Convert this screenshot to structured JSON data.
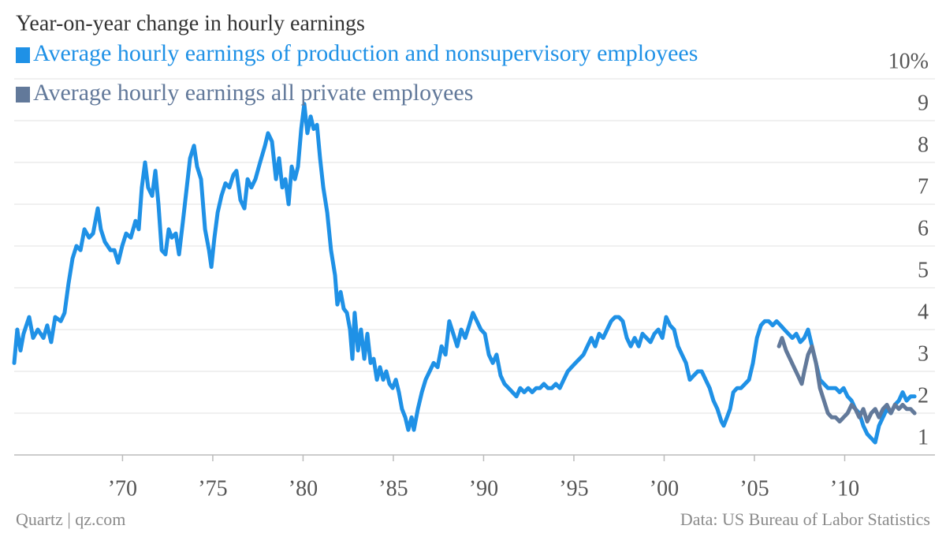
{
  "chart_data": {
    "type": "line",
    "title": "Year-on-year change in hourly earnings",
    "source_left": "Quartz | qz.com",
    "source_right": "Data: US Bureau of Labor Statistics",
    "xlim": [
      1964,
      2015
    ],
    "ylim": [
      1,
      10
    ],
    "xticks": [
      {
        "value": 1970,
        "label": "’70"
      },
      {
        "value": 1975,
        "label": "’75"
      },
      {
        "value": 1980,
        "label": "’80"
      },
      {
        "value": 1985,
        "label": "’85"
      },
      {
        "value": 1990,
        "label": "’90"
      },
      {
        "value": 1995,
        "label": "’95"
      },
      {
        "value": 2000,
        "label": "’00"
      },
      {
        "value": 2005,
        "label": "’05"
      },
      {
        "value": 2010,
        "label": "’10"
      }
    ],
    "yticks": [
      1,
      2,
      3,
      4,
      5,
      6,
      7,
      8,
      9,
      {
        "value": 10,
        "label": "10%"
      }
    ],
    "grid": true,
    "series": [
      {
        "name": "Average hourly earnings of production and nonsupervisory employees",
        "color": "#1f91e6",
        "x": [
          1964.0,
          1964.17,
          1964.35,
          1964.52,
          1964.83,
          1965.05,
          1965.31,
          1965.62,
          1965.83,
          1966.05,
          1966.27,
          1966.58,
          1966.79,
          1967.01,
          1967.23,
          1967.45,
          1967.67,
          1967.89,
          1968.15,
          1968.37,
          1968.63,
          1968.8,
          1969.02,
          1969.33,
          1969.55,
          1969.76,
          1969.98,
          1970.2,
          1970.46,
          1970.72,
          1970.9,
          1971.07,
          1971.25,
          1971.42,
          1971.64,
          1971.82,
          1971.99,
          1972.17,
          1972.38,
          1972.56,
          1972.73,
          1972.95,
          1973.13,
          1973.35,
          1973.56,
          1973.74,
          1973.96,
          1974.13,
          1974.35,
          1974.57,
          1974.79,
          1974.92,
          1975.09,
          1975.27,
          1975.48,
          1975.7,
          1975.92,
          1976.14,
          1976.31,
          1976.53,
          1976.75,
          1976.93,
          1977.14,
          1977.36,
          1977.62,
          1977.89,
          1978.06,
          1978.28,
          1978.5,
          1978.67,
          1978.85,
          1979.02,
          1979.2,
          1979.37,
          1979.55,
          1979.72,
          1979.9,
          1980.07,
          1980.24,
          1980.42,
          1980.59,
          1980.77,
          1980.94,
          1981.12,
          1981.34,
          1981.55,
          1981.77,
          1981.9,
          1982.08,
          1982.25,
          1982.43,
          1982.6,
          1982.73,
          1982.86,
          1983.04,
          1983.21,
          1983.39,
          1983.56,
          1983.74,
          1983.91,
          1984.09,
          1984.26,
          1984.44,
          1984.61,
          1984.79,
          1984.96,
          1985.14,
          1985.31,
          1985.48,
          1985.66,
          1985.83,
          1986.01,
          1986.14,
          1986.36,
          1986.58,
          1986.79,
          1987.01,
          1987.23,
          1987.45,
          1987.67,
          1987.89,
          1988.1,
          1988.32,
          1988.54,
          1988.76,
          1988.98,
          1989.2,
          1989.41,
          1989.63,
          1989.85,
          1990.07,
          1990.29,
          1990.51,
          1990.72,
          1990.94,
          1991.16,
          1991.38,
          1991.6,
          1991.82,
          1992.03,
          1992.25,
          1992.47,
          1992.69,
          1992.91,
          1993.13,
          1993.34,
          1993.56,
          1993.78,
          1994.0,
          1994.22,
          1994.44,
          1994.66,
          1994.87,
          1995.09,
          1995.31,
          1995.53,
          1995.75,
          1995.97,
          1996.18,
          1996.4,
          1996.62,
          1996.84,
          1997.06,
          1997.28,
          1997.49,
          1997.71,
          1997.93,
          1998.15,
          1998.37,
          1998.59,
          1998.8,
          1999.02,
          1999.24,
          1999.46,
          1999.68,
          1999.9,
          2000.11,
          2000.33,
          2000.55,
          2000.77,
          2000.99,
          2001.21,
          2001.42,
          2001.64,
          2001.86,
          2002.08,
          2002.3,
          2002.52,
          2002.73,
          2002.95,
          2003.17,
          2003.3,
          2003.48,
          2003.65,
          2003.83,
          2004.04,
          2004.26,
          2004.48,
          2004.7,
          2004.92,
          2005.14,
          2005.36,
          2005.57,
          2005.79,
          2006.01,
          2006.23,
          2006.45,
          2006.66,
          2006.88,
          2007.1,
          2007.32,
          2007.54,
          2007.76,
          2007.97,
          2008.19,
          2008.41,
          2008.63,
          2008.85,
          2009.07,
          2009.28,
          2009.5,
          2009.72,
          2009.94,
          2010.16,
          2010.38,
          2010.59,
          2010.81,
          2011.03,
          2011.25,
          2011.47,
          2011.69,
          2011.9,
          2012.12,
          2012.34,
          2012.56,
          2012.78,
          2013.0,
          2013.21,
          2013.43,
          2013.65,
          2013.87
        ],
        "values": [
          3.2,
          4.0,
          3.5,
          3.9,
          4.3,
          3.8,
          4.0,
          3.8,
          4.1,
          3.7,
          4.3,
          4.2,
          4.4,
          5.1,
          5.7,
          6.0,
          5.9,
          6.4,
          6.2,
          6.3,
          6.9,
          6.4,
          6.1,
          5.9,
          5.9,
          5.6,
          6.0,
          6.3,
          6.2,
          6.6,
          6.4,
          7.4,
          8.0,
          7.4,
          7.2,
          7.8,
          7.0,
          5.9,
          5.8,
          6.4,
          6.2,
          6.3,
          5.8,
          6.6,
          7.4,
          8.1,
          8.4,
          7.9,
          7.6,
          6.4,
          5.9,
          5.5,
          6.2,
          6.8,
          7.2,
          7.5,
          7.4,
          7.7,
          7.8,
          7.1,
          6.9,
          7.6,
          7.4,
          7.6,
          8.0,
          8.4,
          8.7,
          8.5,
          7.6,
          8.1,
          7.4,
          7.6,
          7.0,
          7.9,
          7.6,
          7.9,
          8.8,
          9.4,
          8.7,
          9.1,
          8.8,
          8.9,
          8.1,
          7.4,
          6.8,
          5.9,
          5.3,
          4.6,
          4.9,
          4.5,
          4.4,
          4.0,
          3.3,
          4.4,
          3.5,
          4.0,
          3.3,
          3.9,
          3.2,
          3.3,
          2.8,
          3.1,
          2.8,
          3.0,
          2.7,
          2.6,
          2.8,
          2.5,
          2.1,
          1.9,
          1.6,
          1.9,
          1.6,
          2.1,
          2.5,
          2.8,
          3.0,
          3.2,
          3.1,
          3.6,
          3.4,
          4.2,
          3.9,
          3.6,
          4.0,
          3.8,
          4.1,
          4.4,
          4.2,
          4.0,
          3.9,
          3.4,
          3.2,
          3.4,
          2.9,
          2.7,
          2.6,
          2.5,
          2.4,
          2.6,
          2.5,
          2.6,
          2.5,
          2.6,
          2.6,
          2.7,
          2.6,
          2.6,
          2.7,
          2.6,
          2.8,
          3.0,
          3.1,
          3.2,
          3.3,
          3.4,
          3.6,
          3.8,
          3.6,
          3.9,
          3.8,
          4.0,
          4.2,
          4.3,
          4.3,
          4.2,
          3.8,
          3.6,
          3.8,
          3.6,
          3.9,
          3.8,
          3.7,
          3.9,
          4.0,
          3.8,
          4.3,
          4.1,
          4.0,
          3.6,
          3.4,
          3.2,
          2.8,
          2.9,
          3.0,
          3.0,
          2.8,
          2.6,
          2.3,
          2.1,
          1.8,
          1.7,
          1.9,
          2.1,
          2.5,
          2.6,
          2.6,
          2.7,
          2.8,
          3.2,
          3.8,
          4.1,
          4.2,
          4.2,
          4.1,
          4.2,
          4.1,
          4.0,
          3.9,
          3.8,
          3.9,
          3.7,
          3.8,
          4.0,
          3.6,
          3.2,
          2.8,
          2.7,
          2.6,
          2.6,
          2.6,
          2.5,
          2.6,
          2.4,
          2.3,
          2.1,
          2.0,
          1.7,
          1.5,
          1.4,
          1.3,
          1.7,
          1.9,
          2.1,
          2.0,
          2.2,
          2.3,
          2.5,
          2.3,
          2.4,
          2.4
        ]
      },
      {
        "name": "Average hourly earnings all private employees",
        "color": "#62799a",
        "x": [
          2006.36,
          2006.53,
          2006.75,
          2006.97,
          2007.19,
          2007.41,
          2007.62,
          2007.76,
          2007.97,
          2008.19,
          2008.41,
          2008.63,
          2008.85,
          2009.07,
          2009.28,
          2009.5,
          2009.72,
          2009.94,
          2010.16,
          2010.38,
          2010.59,
          2010.81,
          2011.03,
          2011.25,
          2011.47,
          2011.69,
          2011.9,
          2012.12,
          2012.34,
          2012.56,
          2012.78,
          2013.0,
          2013.21,
          2013.43,
          2013.65,
          2013.87
        ],
        "values": [
          3.6,
          3.8,
          3.5,
          3.3,
          3.1,
          2.9,
          2.7,
          3.0,
          3.4,
          3.6,
          3.2,
          2.6,
          2.3,
          2.0,
          1.9,
          1.9,
          1.8,
          1.9,
          2.0,
          2.2,
          2.1,
          1.9,
          2.1,
          1.8,
          2.0,
          2.1,
          1.9,
          2.1,
          2.2,
          2.0,
          2.2,
          2.1,
          2.2,
          2.1,
          2.1,
          2.0
        ]
      }
    ]
  }
}
